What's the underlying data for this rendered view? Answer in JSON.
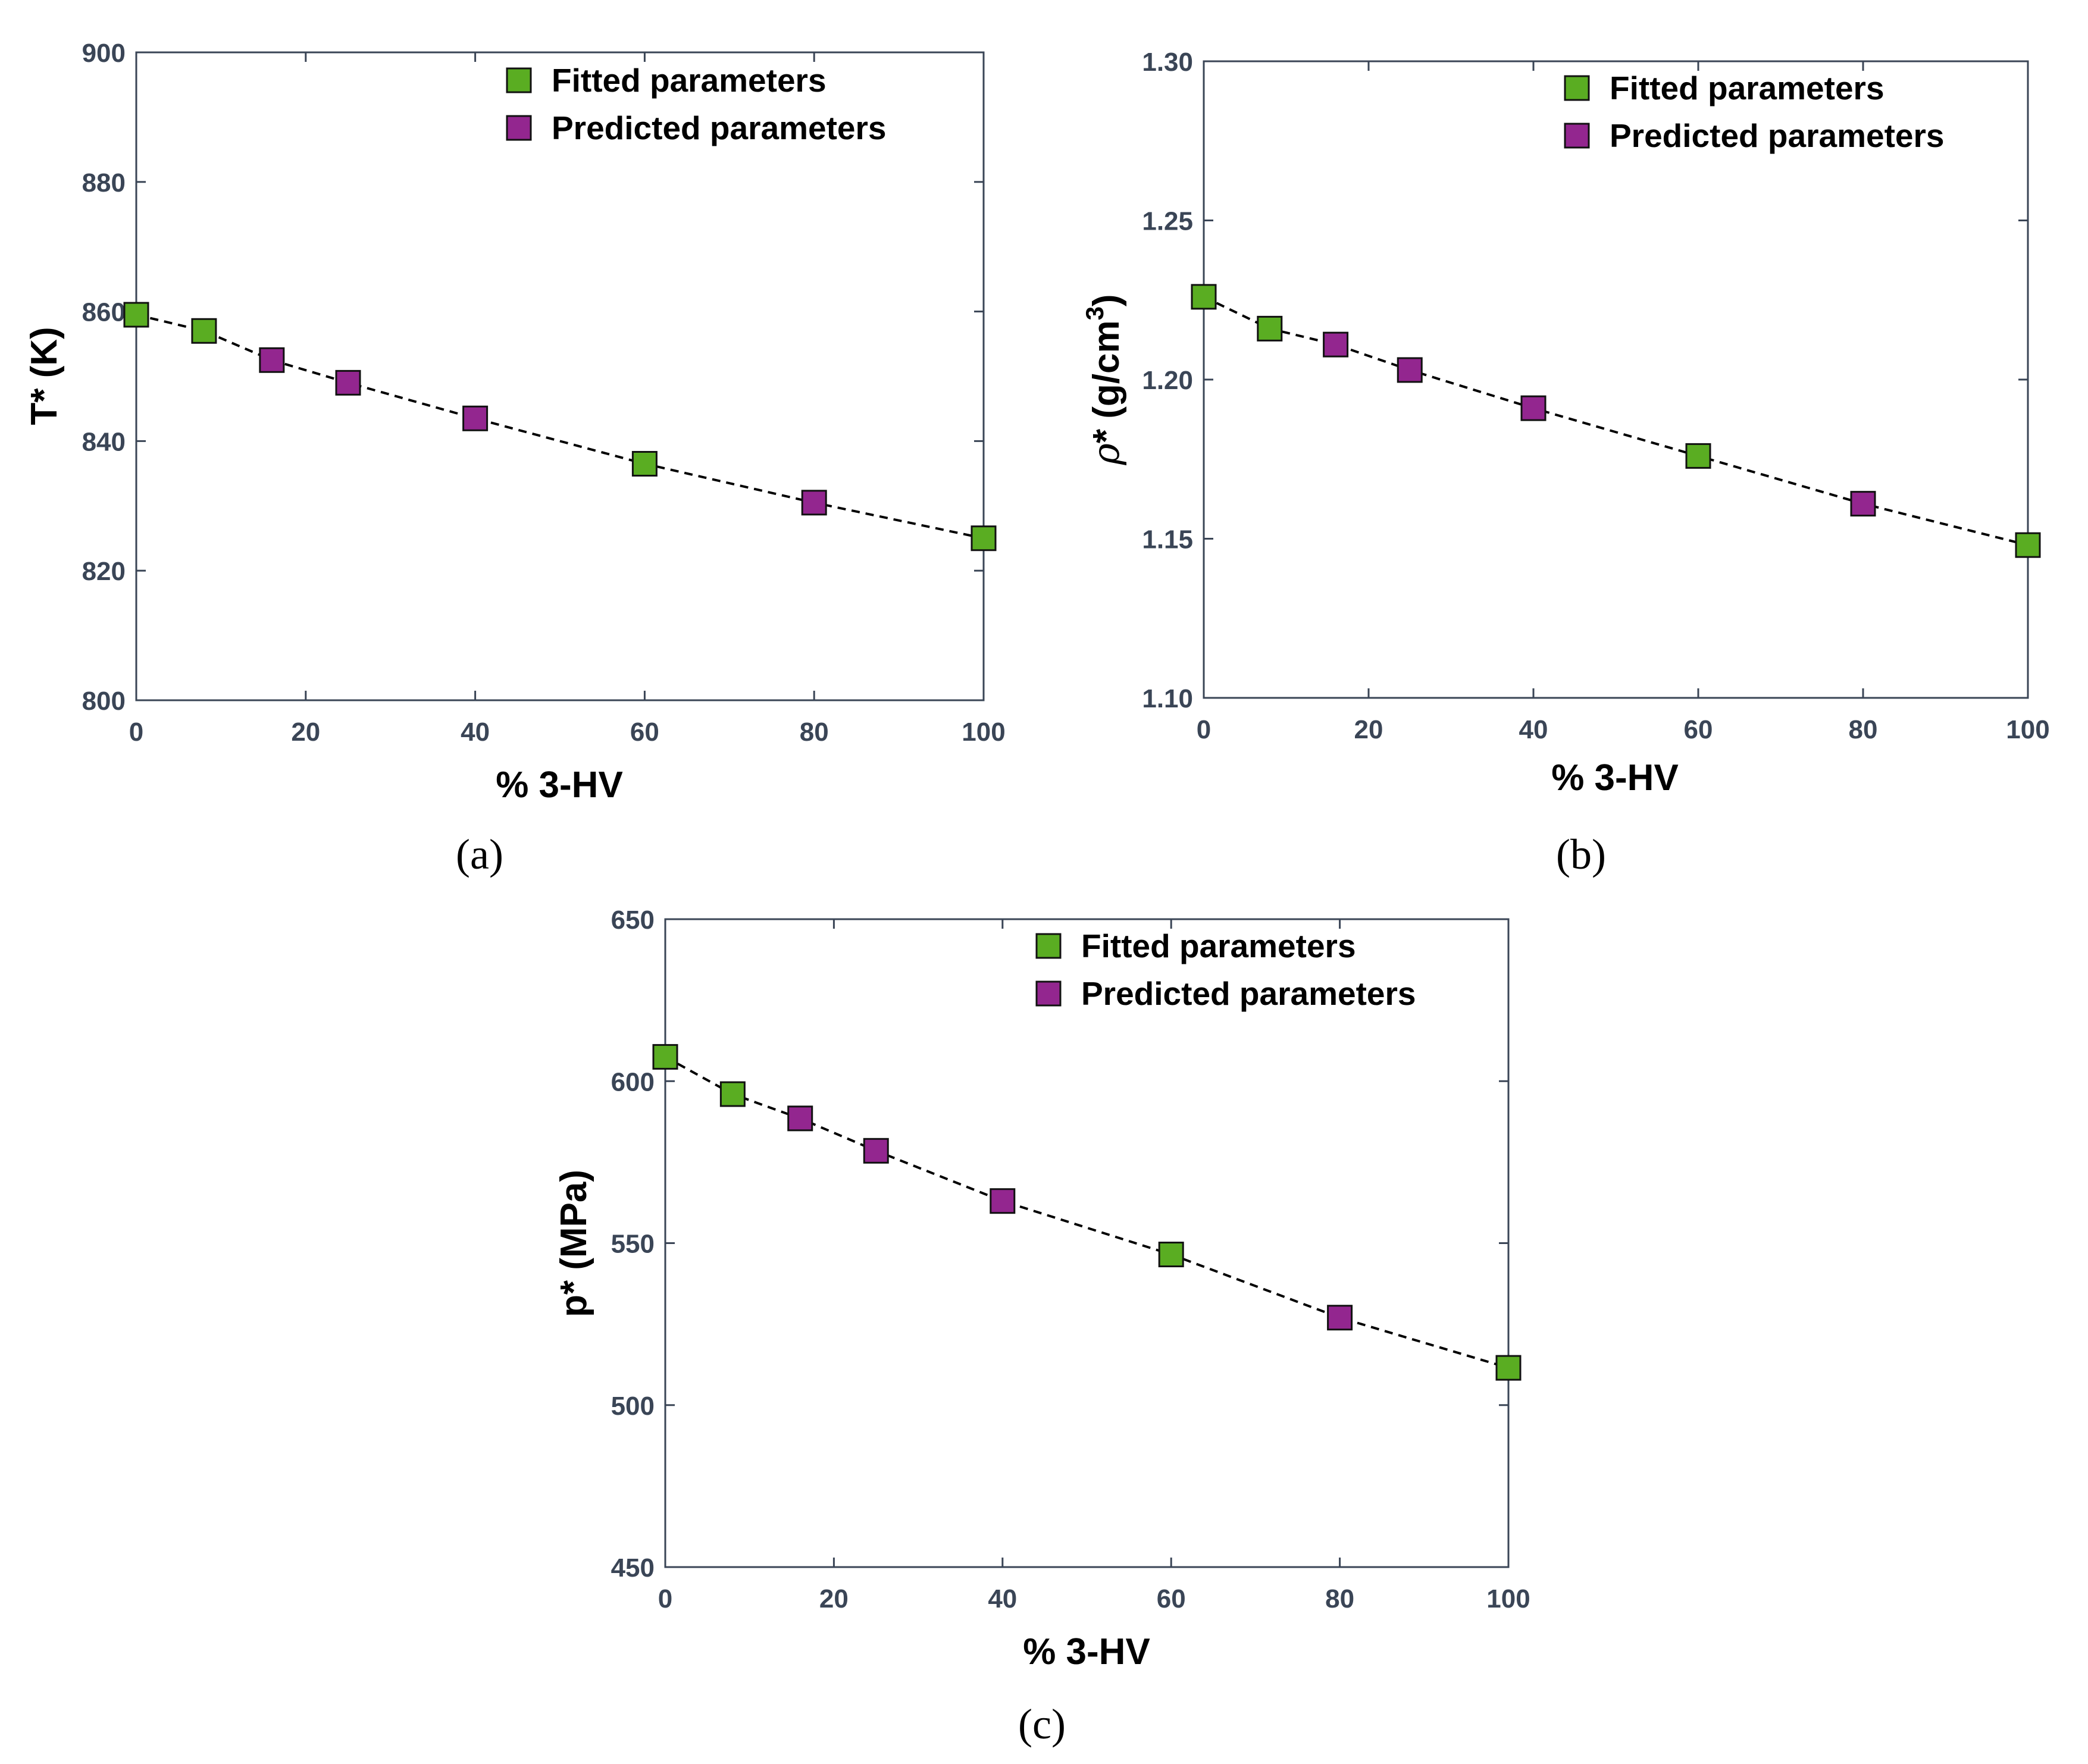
{
  "colors": {
    "fitted": "#5aad22",
    "predicted": "#93268f",
    "axis": "#3a4556",
    "line": "#000000"
  },
  "chart_data": [
    {
      "type": "scatter",
      "caption": "(a)",
      "xlabel": "% 3-HV",
      "ylabel_text": "T* (K)",
      "ylabel_rho": false,
      "xlim": [
        0,
        100
      ],
      "ylim": [
        800,
        900
      ],
      "xticks": [
        0,
        20,
        40,
        60,
        80,
        100
      ],
      "yticks": [
        800,
        820,
        840,
        860,
        880,
        900
      ],
      "ytick_labels": [
        "800",
        "820",
        "840",
        "860",
        "880",
        "900"
      ],
      "legend": [
        "Fitted parameters",
        "Predicted parameters"
      ],
      "legend_position": "top-right",
      "grid": false,
      "series": [
        {
          "name": "Fitted parameters",
          "marker": "square",
          "color": "#5aad22",
          "x": [
            0,
            8,
            60,
            100
          ],
          "y": [
            859.5,
            857,
            836.5,
            825
          ]
        },
        {
          "name": "Predicted parameters",
          "marker": "square",
          "color": "#93268f",
          "x": [
            16,
            25,
            40,
            80
          ],
          "y": [
            852.5,
            849,
            843.5,
            830.5
          ]
        }
      ],
      "trend_line": {
        "style": "dashed",
        "x": [
          0,
          8,
          16,
          25,
          40,
          60,
          80,
          100
        ],
        "y": [
          859.5,
          857,
          852.5,
          849,
          843.5,
          836.5,
          830.5,
          825
        ]
      }
    },
    {
      "type": "scatter",
      "caption": "(b)",
      "xlabel": "% 3-HV",
      "ylabel_text": "* (g/cm3)",
      "ylabel_rho": true,
      "ylabel_rho_symbol": "ρ",
      "ylabel_rest": "* (g/cm",
      "ylabel_sup": "3",
      "ylabel_close": ")",
      "xlim": [
        0,
        100
      ],
      "ylim": [
        1.1,
        1.3
      ],
      "xticks": [
        0,
        20,
        40,
        60,
        80,
        100
      ],
      "yticks": [
        1.1,
        1.15,
        1.2,
        1.25,
        1.3
      ],
      "ytick_labels": [
        "1.10",
        "1.15",
        "1.20",
        "1.25",
        "1.30"
      ],
      "legend": [
        "Fitted parameters",
        "Predicted parameters"
      ],
      "legend_position": "top-right",
      "grid": false,
      "series": [
        {
          "name": "Fitted parameters",
          "marker": "square",
          "color": "#5aad22",
          "x": [
            0,
            8,
            60,
            100
          ],
          "y": [
            1.226,
            1.216,
            1.176,
            1.148
          ]
        },
        {
          "name": "Predicted parameters",
          "marker": "square",
          "color": "#93268f",
          "x": [
            16,
            25,
            40,
            80
          ],
          "y": [
            1.211,
            1.203,
            1.191,
            1.161
          ]
        }
      ],
      "trend_line": {
        "style": "dashed",
        "x": [
          0,
          8,
          16,
          25,
          40,
          60,
          80,
          100
        ],
        "y": [
          1.226,
          1.216,
          1.211,
          1.203,
          1.191,
          1.176,
          1.161,
          1.148
        ]
      }
    },
    {
      "type": "scatter",
      "caption": "(c)",
      "xlabel": "% 3-HV",
      "ylabel_text": "p* (MPa)",
      "ylabel_rho": false,
      "xlim": [
        0,
        100
      ],
      "ylim": [
        450,
        650
      ],
      "xticks": [
        0,
        20,
        40,
        60,
        80,
        100
      ],
      "yticks": [
        450,
        500,
        550,
        600,
        650
      ],
      "ytick_labels": [
        "450",
        "500",
        "550",
        "600",
        "650"
      ],
      "legend": [
        "Fitted parameters",
        "Predicted parameters"
      ],
      "legend_position": "top-right",
      "grid": false,
      "series": [
        {
          "name": "Fitted parameters",
          "marker": "square",
          "color": "#5aad22",
          "x": [
            0,
            8,
            60,
            100
          ],
          "y": [
            607.5,
            596,
            546.5,
            511.5
          ]
        },
        {
          "name": "Predicted parameters",
          "marker": "square",
          "color": "#93268f",
          "x": [
            16,
            25,
            40,
            80
          ],
          "y": [
            588.5,
            578.5,
            563,
            527
          ]
        }
      ],
      "trend_line": {
        "style": "dashed",
        "x": [
          0,
          8,
          16,
          25,
          40,
          60,
          80,
          100
        ],
        "y": [
          607.5,
          596,
          588.5,
          578.5,
          563,
          546.5,
          527,
          511.5
        ]
      }
    }
  ]
}
